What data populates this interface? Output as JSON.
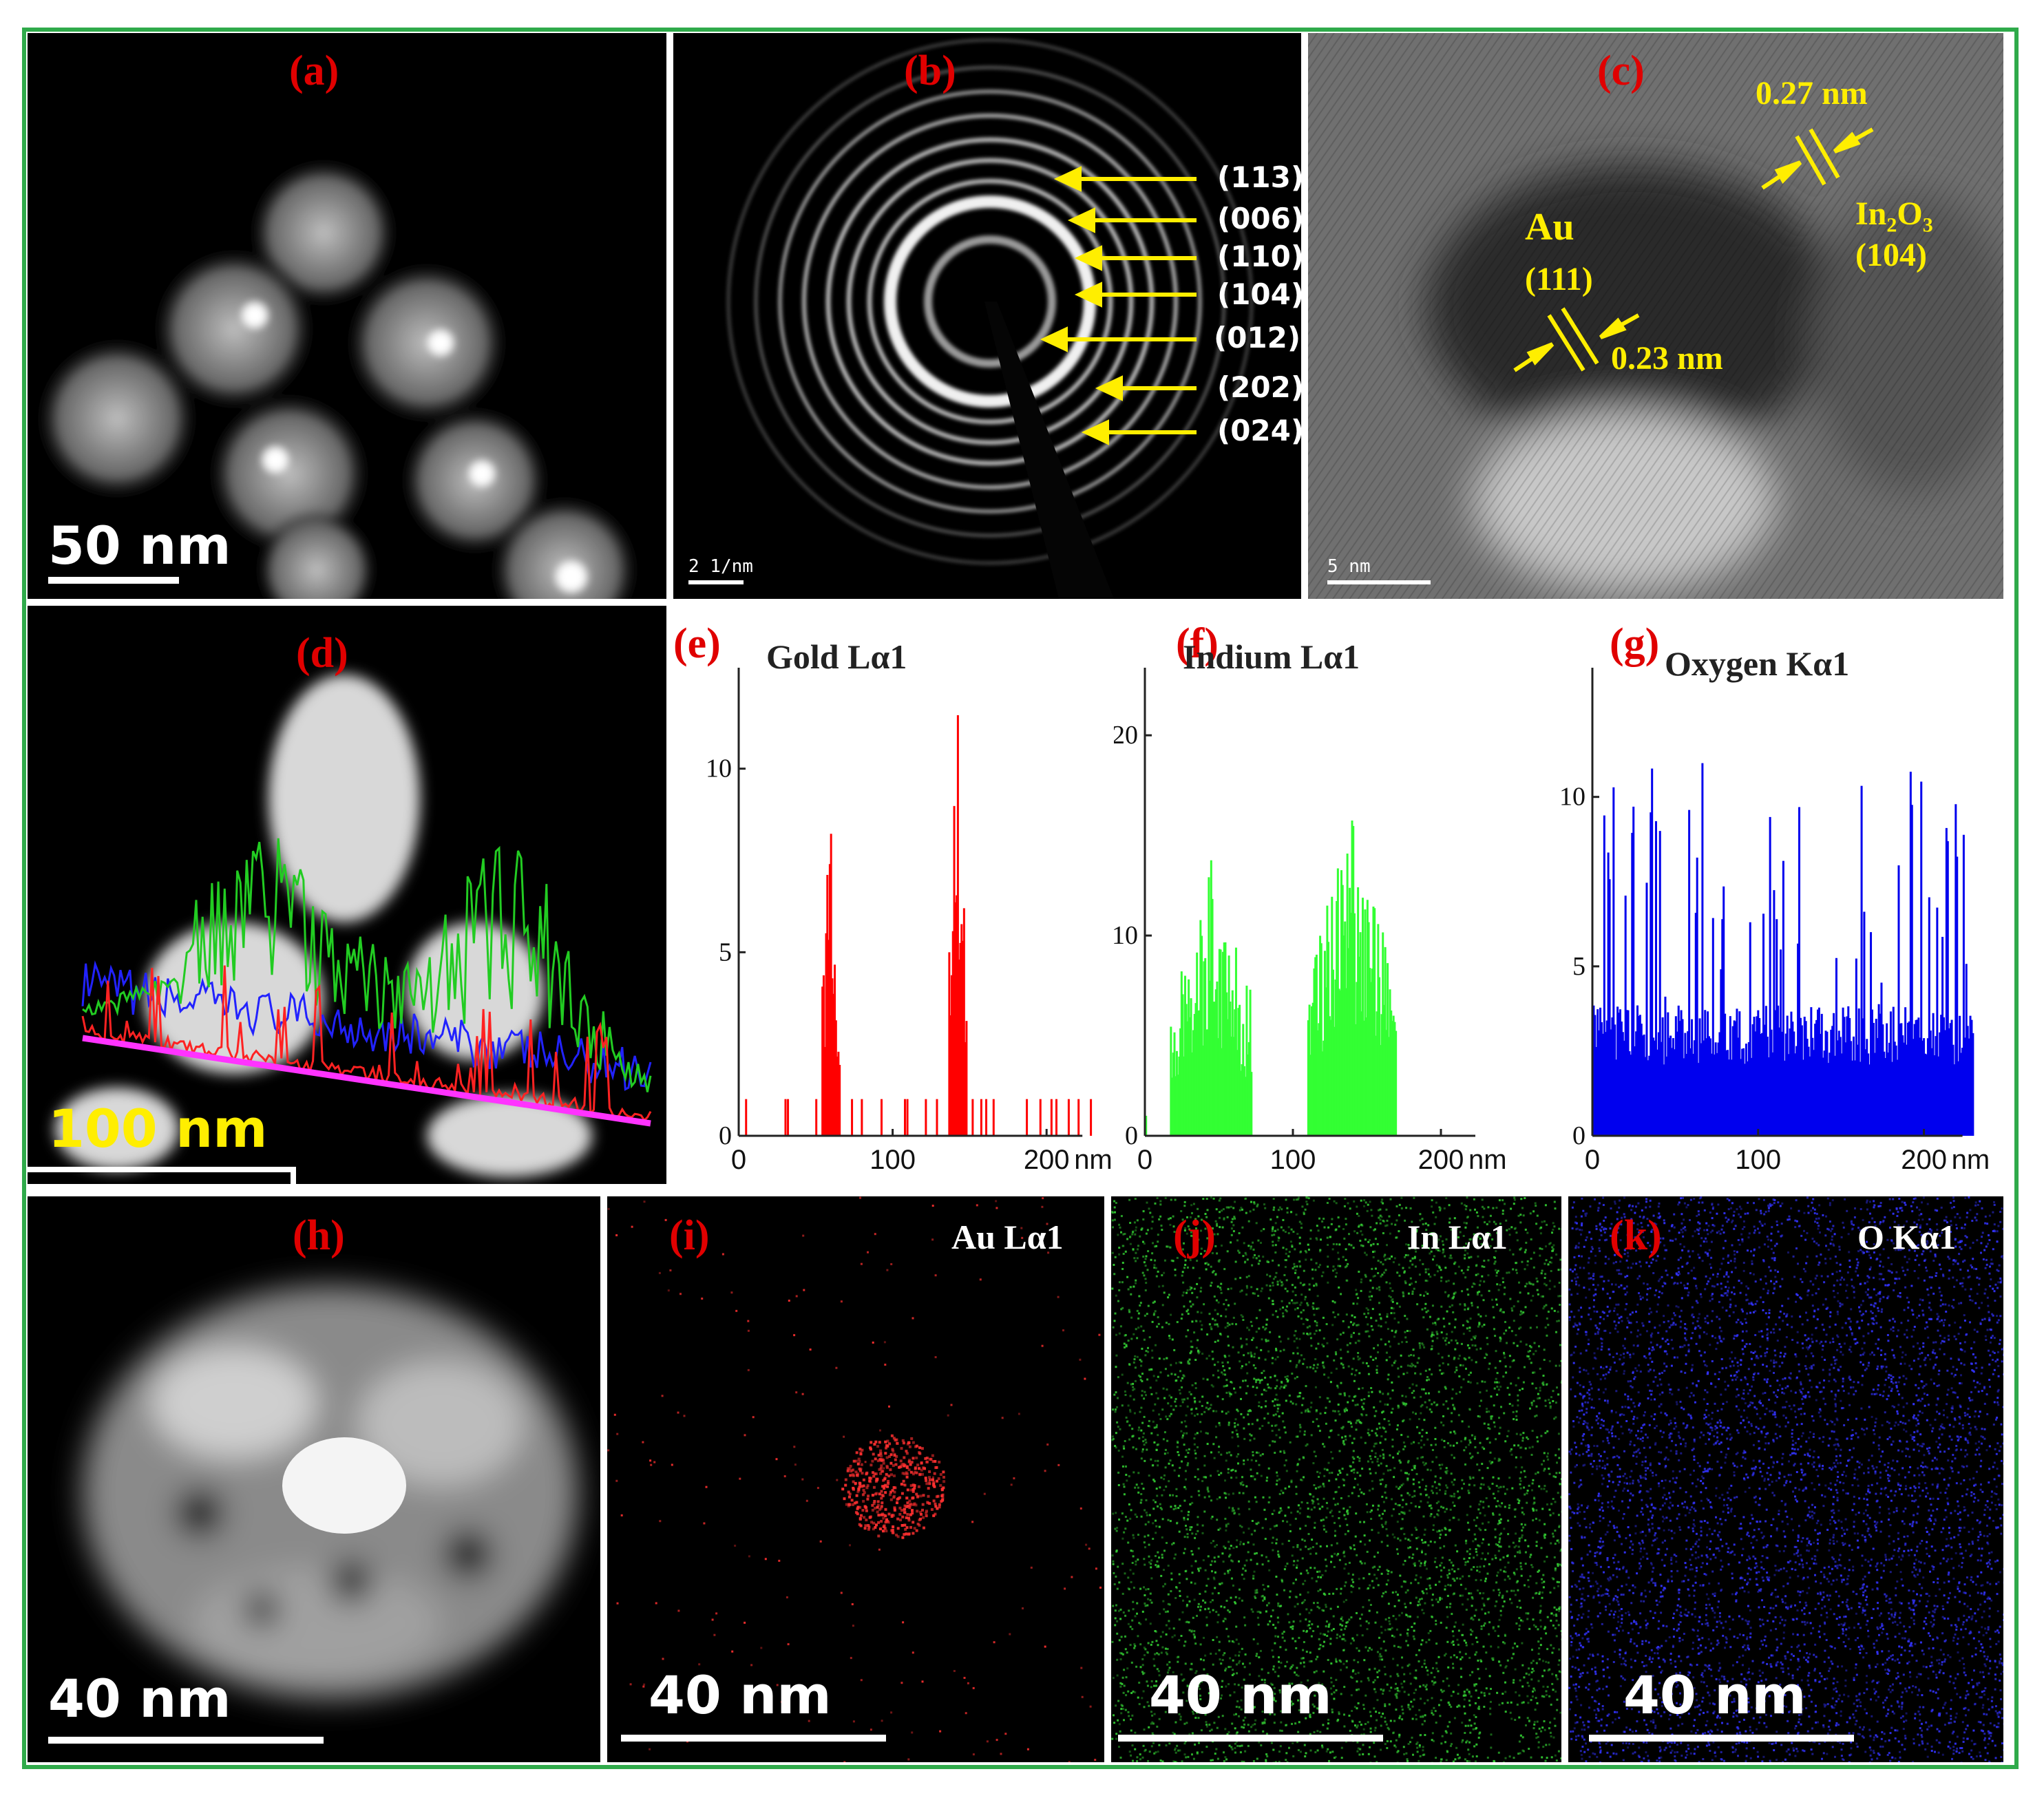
{
  "panels": {
    "a": {
      "label": "(a)",
      "scale": "50 nm"
    },
    "b": {
      "label": "(b)",
      "scale": "2 1/nm",
      "planes": [
        "(113)",
        "(006)",
        "(110)",
        "(104)",
        "(012)",
        "(202)",
        "(024)"
      ]
    },
    "c": {
      "label": "(c)",
      "scale": "5 nm",
      "au_name": "Au",
      "au_plane": "(111)",
      "au_spacing": "0.23 nm",
      "in_spacing": "0.27 nm",
      "in_name_main": "In",
      "in_sub1": "2",
      "in_name_o": "O",
      "in_sub2": "3",
      "in_plane": "(104)"
    },
    "d": {
      "label": "(d)",
      "scale": "100 nm"
    },
    "h": {
      "label": "(h)",
      "scale": "40 nm"
    },
    "i": {
      "label": "(i)",
      "element": "Au Lα1",
      "scale": "40 nm",
      "color": "#ff3030"
    },
    "j": {
      "label": "(j)",
      "element": "In Lα1",
      "scale": "40 nm",
      "color": "#33cc33"
    },
    "k": {
      "label": "(k)",
      "element": "O Kα1",
      "scale": "40 nm",
      "color": "#3333ff"
    }
  },
  "chart_data": [
    {
      "type": "bar",
      "label": "(e)",
      "title": "Gold Lα1",
      "color": "#ff0000",
      "xlim": [
        0,
        200
      ],
      "ylim": [
        0,
        12
      ],
      "xunit": "nm",
      "xticks": [
        "0",
        "100",
        "200"
      ],
      "yticks": [
        "0",
        "5",
        "10"
      ],
      "peaks": [
        {
          "center": 60,
          "width": 12,
          "height": 9
        },
        {
          "center": 142,
          "width": 12,
          "height": 12
        }
      ],
      "baseline": 1
    },
    {
      "type": "bar",
      "label": "(f)",
      "title": "Indium Lα1",
      "color": "#33ff33",
      "xlim": [
        0,
        200
      ],
      "ylim": [
        0,
        22
      ],
      "xunit": "nm",
      "xticks": [
        "0",
        "100",
        "200"
      ],
      "yticks": [
        "0",
        "10",
        "20"
      ],
      "peaks": [
        {
          "center": 45,
          "width": 55,
          "height": 14
        },
        {
          "center": 140,
          "width": 60,
          "height": 16
        }
      ],
      "baseline": 0
    },
    {
      "type": "bar",
      "label": "(g)",
      "title": "Oxygen Kα1",
      "color": "#0000ee",
      "xlim": [
        0,
        200
      ],
      "ylim": [
        0,
        13
      ],
      "xunit": "nm",
      "xticks": [
        "0",
        "100",
        "200"
      ],
      "yticks": [
        "0",
        "5",
        "10"
      ],
      "peaks": [],
      "baseline": 3
    }
  ]
}
